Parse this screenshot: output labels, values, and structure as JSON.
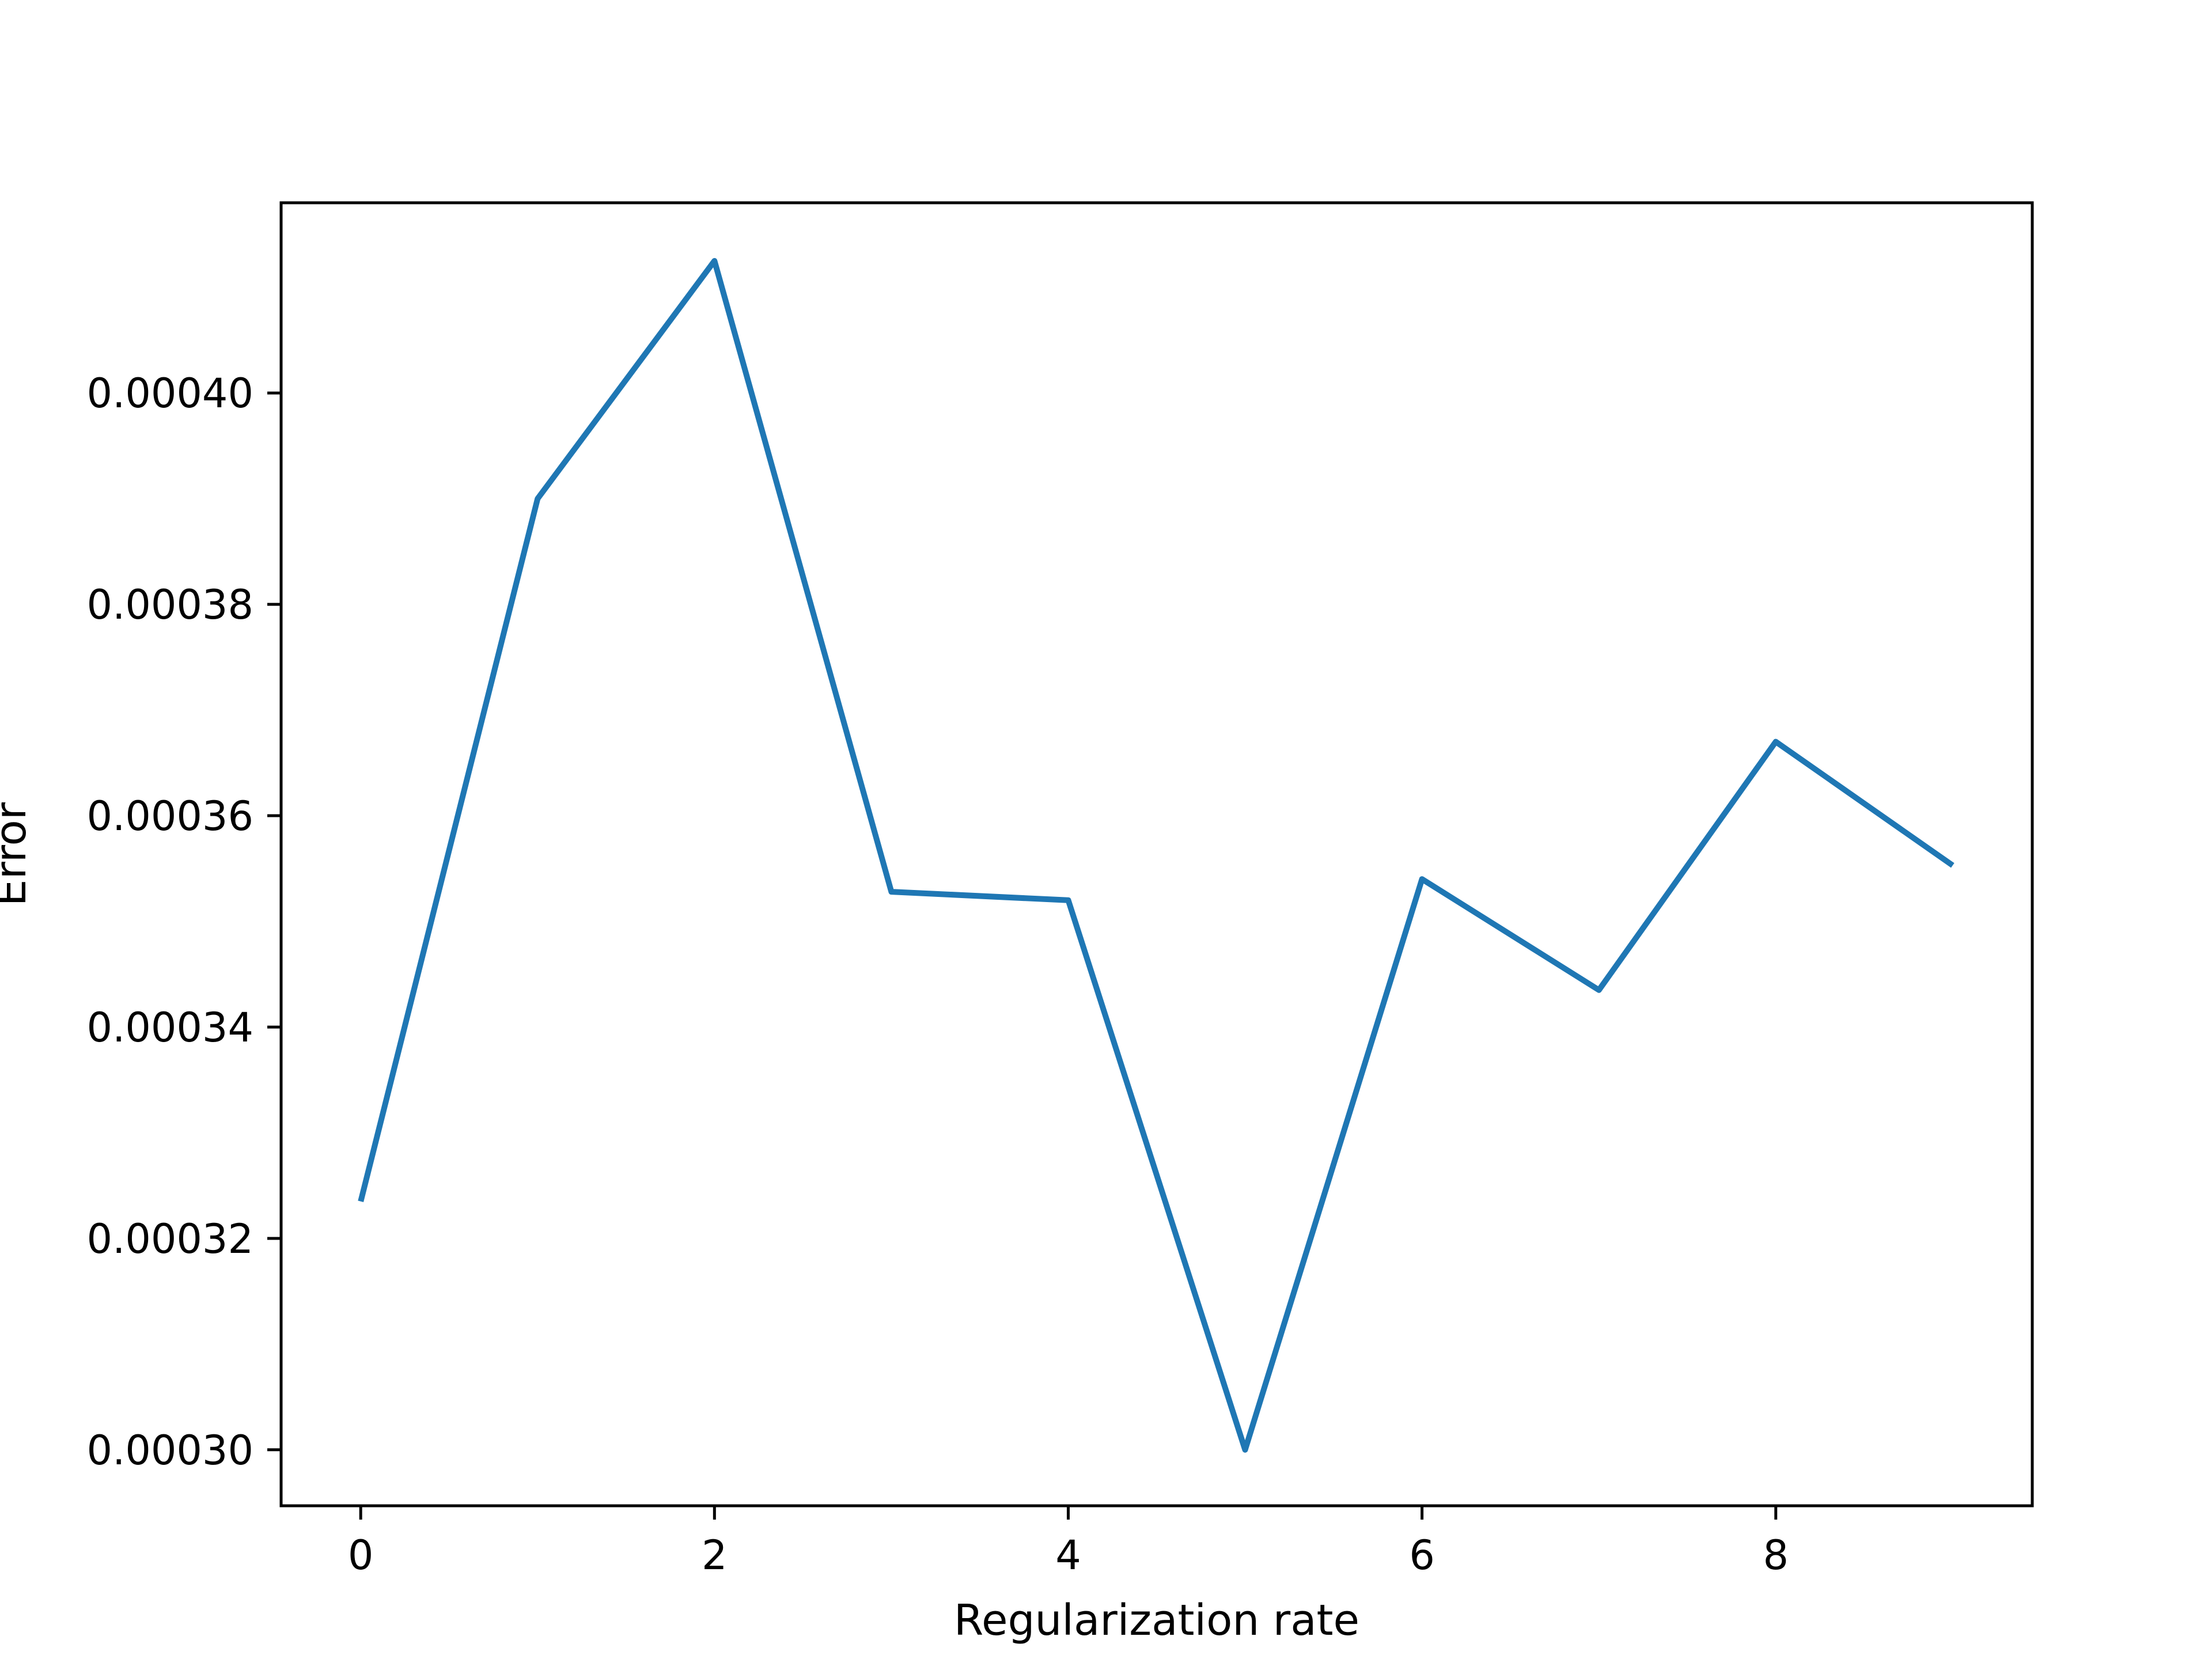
{
  "chart_data": {
    "type": "line",
    "title": "",
    "xlabel": "Regularization rate",
    "ylabel": "Error",
    "x_ticks": [
      "0",
      "2",
      "4",
      "6",
      "8"
    ],
    "y_ticks": [
      "0.00030",
      "0.00032",
      "0.00034",
      "0.00036",
      "0.00038",
      "0.00040"
    ],
    "xlim": [
      -0.45,
      9.45
    ],
    "ylim": [
      0.0002947,
      0.000418
    ],
    "grid": false,
    "series": [
      {
        "color": "#1f77b4",
        "x": [
          0,
          1,
          2,
          3,
          4,
          5,
          6,
          7,
          8,
          9
        ],
        "y": [
          0.0003235,
          0.00039,
          0.0004125,
          0.0003528,
          0.000352,
          0.0003,
          0.000354,
          0.0003435,
          0.000367,
          0.0003553
        ]
      }
    ]
  }
}
